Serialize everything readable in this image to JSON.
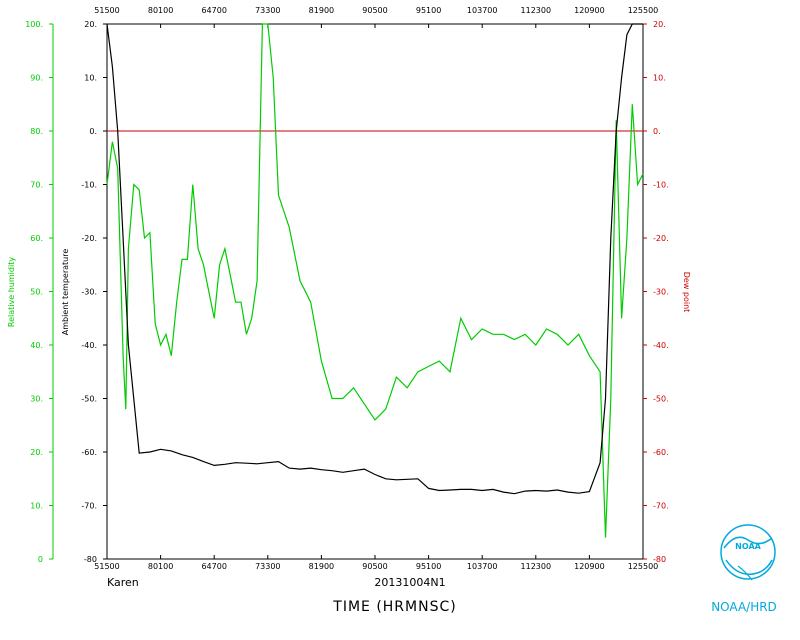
{
  "chart_data": {
    "type": "line",
    "xlabel": "TIME (HRMNSC)",
    "x_ticks": [
      "51500",
      "80100",
      "64700",
      "73300",
      "81900",
      "90500",
      "95100",
      "103700",
      "112300",
      "120900",
      "125500"
    ],
    "y_left_outer": {
      "label": "Relative humidity",
      "range": [
        0,
        100
      ],
      "ticks": [
        "0",
        "10.",
        "20.",
        "30.",
        "40.",
        "50.",
        "60.",
        "70.",
        "80.",
        "90.",
        "100."
      ],
      "color": "#00cc00"
    },
    "y_left_inner": {
      "label": "Ambient temperature",
      "range": [
        -80,
        20
      ],
      "ticks": [
        "-80",
        "-70.",
        "-60.",
        "-50.",
        "-40.",
        "-30.",
        "-20.",
        "-10.",
        "0.",
        "10.",
        "20."
      ],
      "color": "#000000"
    },
    "y_right": {
      "label": "Dew point",
      "range": [
        -80,
        20
      ],
      "ticks": [
        "-80",
        "-70.",
        "-60.",
        "-50.",
        "-40.",
        "-30.",
        "-20.",
        "-10.",
        "0.",
        "10.",
        "20."
      ],
      "color": "#cc0000"
    },
    "reference_line": {
      "value": 0,
      "color": "#cc0000"
    },
    "series": [
      {
        "name": "Relative humidity",
        "color": "#00cc00",
        "x": [
          0,
          1,
          2,
          3,
          3.5,
          4,
          5,
          6,
          7,
          8,
          9,
          10,
          11,
          12,
          13,
          14,
          15,
          16,
          17,
          18,
          19,
          20,
          21,
          22,
          23,
          24,
          25,
          26,
          27,
          28,
          29,
          30,
          31,
          32,
          33,
          34,
          36,
          38,
          40,
          42,
          44,
          46,
          48,
          50,
          52,
          54,
          56,
          58,
          60,
          62,
          64,
          66,
          68,
          70,
          72,
          74,
          76,
          78,
          80,
          82,
          84,
          86,
          88,
          90,
          92,
          93,
          94,
          95,
          96,
          97,
          98,
          99,
          100
        ],
        "y": [
          70,
          78,
          73,
          38,
          28,
          58,
          70,
          69,
          60,
          61,
          44,
          40,
          42,
          38,
          48,
          56,
          56,
          70,
          58,
          55,
          50,
          45,
          55,
          58,
          53,
          48,
          48,
          42,
          45,
          52,
          100,
          100,
          90,
          68,
          65,
          62,
          52,
          48,
          37,
          30,
          30,
          32,
          29,
          26,
          28,
          34,
          32,
          35,
          36,
          37,
          35,
          45,
          41,
          43,
          42,
          42,
          41,
          42,
          40,
          43,
          42,
          40,
          42,
          38,
          35,
          4,
          30,
          82,
          45,
          60,
          85,
          70,
          72
        ]
      },
      {
        "name": "Ambient temperature",
        "color": "#000000",
        "x": [
          0,
          1,
          2,
          3,
          4,
          6,
          8,
          10,
          12,
          14,
          16,
          18,
          20,
          22,
          24,
          26,
          28,
          30,
          32,
          34,
          36,
          38,
          40,
          42,
          44,
          46,
          48,
          50,
          52,
          54,
          56,
          58,
          60,
          62,
          64,
          66,
          68,
          70,
          72,
          74,
          76,
          78,
          80,
          82,
          84,
          86,
          88,
          90,
          92,
          93,
          94,
          95,
          96,
          97,
          98,
          99,
          100
        ],
        "y": [
          20,
          12,
          0,
          -20,
          -40,
          -60.2,
          -60,
          -59.5,
          -59.8,
          -60.5,
          -61,
          -61.8,
          -62.5,
          -62.3,
          -62,
          -62.1,
          -62.2,
          -62,
          -61.8,
          -63,
          -63.2,
          -63,
          -63.3,
          -63.5,
          -63.8,
          -63.5,
          -63.2,
          -64.2,
          -65,
          -65.2,
          -65.1,
          -65,
          -66.8,
          -67.2,
          -67.1,
          -67,
          -67,
          -67.2,
          -67,
          -67.5,
          -67.8,
          -67.3,
          -67.2,
          -67.3,
          -67.1,
          -67.5,
          -67.7,
          -67.4,
          -62,
          -50,
          -20,
          0,
          10,
          18,
          20,
          21,
          22
        ]
      }
    ],
    "caption_left": "Karen",
    "caption_center": "20131004N1",
    "logo_text": "NOAA",
    "credit": "NOAA/HRD"
  }
}
